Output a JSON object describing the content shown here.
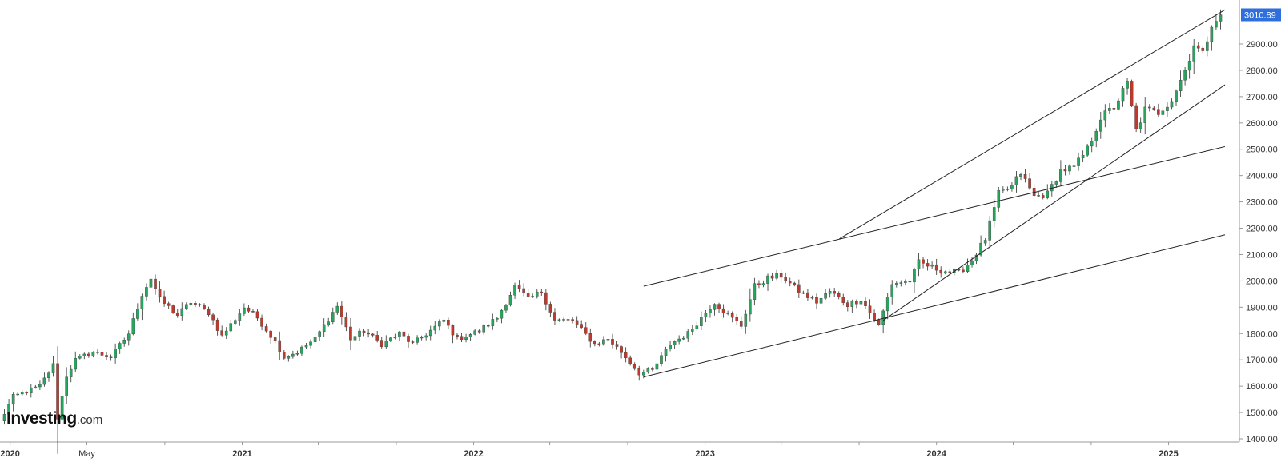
{
  "chart_data": {
    "type": "candlestick",
    "title": "",
    "xlabel": "",
    "ylabel": "",
    "ylim": [
      1400,
      3030
    ],
    "y_ticks": [
      1400.0,
      1500.0,
      1600.0,
      1700.0,
      1800.0,
      1900.0,
      2000.0,
      2100.0,
      2200.0,
      2300.0,
      2400.0,
      2500.0,
      2600.0,
      2700.0,
      2800.0,
      2900.0
    ],
    "x_range": [
      "2019-12-16",
      "2025-03-31"
    ],
    "x_labels": [
      {
        "date": "2020-01-01",
        "label": "2020",
        "bold": true
      },
      {
        "date": "2020-05-01",
        "label": "May",
        "bold": false
      },
      {
        "date": "2021-01-01",
        "label": "2021",
        "bold": true
      },
      {
        "date": "2022-01-01",
        "label": "2022",
        "bold": true
      },
      {
        "date": "2023-01-01",
        "label": "2023",
        "bold": true
      },
      {
        "date": "2024-01-01",
        "label": "2024",
        "bold": true
      },
      {
        "date": "2025-01-01",
        "label": "2025",
        "bold": true
      }
    ],
    "x_minor_ticks": [
      "2020-05-01",
      "2020-09-01",
      "2021-05-01",
      "2021-09-01",
      "2022-05-01",
      "2022-09-01",
      "2023-05-01",
      "2023-09-01",
      "2024-05-01",
      "2024-09-01"
    ],
    "last_price": "3010.89",
    "colors": {
      "up": "#26a65b",
      "down": "#c0392b",
      "wick": "#444444",
      "trendline": "#222222",
      "axis": "#999999",
      "tag": "#2f6fdb"
    },
    "series_anchors": [
      [
        "2019-12-16",
        1465
      ],
      [
        "2020-01-06",
        1560
      ],
      [
        "2020-02-17",
        1600
      ],
      [
        "2020-03-09",
        1680
      ],
      [
        "2020-03-16",
        1480
      ],
      [
        "2020-03-30",
        1640
      ],
      [
        "2020-04-13",
        1700
      ],
      [
        "2020-05-11",
        1730
      ],
      [
        "2020-06-08",
        1710
      ],
      [
        "2020-07-06",
        1800
      ],
      [
        "2020-07-27",
        1950
      ],
      [
        "2020-08-10",
        2010
      ],
      [
        "2020-08-24",
        1930
      ],
      [
        "2020-09-21",
        1870
      ],
      [
        "2020-10-12",
        1920
      ],
      [
        "2020-11-09",
        1880
      ],
      [
        "2020-11-30",
        1790
      ],
      [
        "2021-01-04",
        1900
      ],
      [
        "2021-01-25",
        1860
      ],
      [
        "2021-02-22",
        1770
      ],
      [
        "2021-03-08",
        1710
      ],
      [
        "2021-03-29",
        1730
      ],
      [
        "2021-04-26",
        1780
      ],
      [
        "2021-05-31",
        1905
      ],
      [
        "2021-06-21",
        1780
      ],
      [
        "2021-07-12",
        1810
      ],
      [
        "2021-08-09",
        1760
      ],
      [
        "2021-09-06",
        1800
      ],
      [
        "2021-09-27",
        1760
      ],
      [
        "2021-11-15",
        1850
      ],
      [
        "2021-12-06",
        1780
      ],
      [
        "2022-01-10",
        1810
      ],
      [
        "2022-02-07",
        1860
      ],
      [
        "2022-03-07",
        1980
      ],
      [
        "2022-03-28",
        1930
      ],
      [
        "2022-04-18",
        1960
      ],
      [
        "2022-05-09",
        1850
      ],
      [
        "2022-06-06",
        1850
      ],
      [
        "2022-07-11",
        1760
      ],
      [
        "2022-08-01",
        1780
      ],
      [
        "2022-08-22",
        1730
      ],
      [
        "2022-09-19",
        1650
      ],
      [
        "2022-10-10",
        1660
      ],
      [
        "2022-11-07",
        1760
      ],
      [
        "2022-12-05",
        1800
      ],
      [
        "2023-01-16",
        1920
      ],
      [
        "2023-02-06",
        1870
      ],
      [
        "2023-02-27",
        1830
      ],
      [
        "2023-03-20",
        1980
      ],
      [
        "2023-04-10",
        2010
      ],
      [
        "2023-05-01",
        2020
      ],
      [
        "2023-05-29",
        1960
      ],
      [
        "2023-06-26",
        1920
      ],
      [
        "2023-07-17",
        1960
      ],
      [
        "2023-08-14",
        1910
      ],
      [
        "2023-09-04",
        1930
      ],
      [
        "2023-10-02",
        1830
      ],
      [
        "2023-10-23",
        1990
      ],
      [
        "2023-11-20",
        2000
      ],
      [
        "2023-12-04",
        2070
      ],
      [
        "2024-01-08",
        2040
      ],
      [
        "2024-02-05",
        2030
      ],
      [
        "2024-02-26",
        2080
      ],
      [
        "2024-03-18",
        2160
      ],
      [
        "2024-04-08",
        2330
      ],
      [
        "2024-04-29",
        2360
      ],
      [
        "2024-05-13",
        2410
      ],
      [
        "2024-06-03",
        2320
      ],
      [
        "2024-06-24",
        2330
      ],
      [
        "2024-07-15",
        2420
      ],
      [
        "2024-08-05",
        2430
      ],
      [
        "2024-08-26",
        2500
      ],
      [
        "2024-09-16",
        2620
      ],
      [
        "2024-10-07",
        2660
      ],
      [
        "2024-10-28",
        2750
      ],
      [
        "2024-11-11",
        2570
      ],
      [
        "2024-11-25",
        2650
      ],
      [
        "2024-12-16",
        2640
      ],
      [
        "2025-01-06",
        2690
      ],
      [
        "2025-01-27",
        2800
      ],
      [
        "2025-02-10",
        2900
      ],
      [
        "2025-02-24",
        2860
      ],
      [
        "2025-03-10",
        2980
      ],
      [
        "2025-03-24",
        3010.89
      ]
    ],
    "annotations": [
      {
        "type": "trendline",
        "from": [
          "2023-08-01",
          2160
        ],
        "to": [
          "2025-03-31",
          3030
        ]
      },
      {
        "type": "trendline",
        "from": [
          "2023-10-09",
          1850
        ],
        "to": [
          "2025-03-31",
          2745
        ]
      },
      {
        "type": "trendline",
        "from": [
          "2022-09-26",
          1980
        ],
        "to": [
          "2025-03-31",
          2510
        ]
      },
      {
        "type": "trendline",
        "from": [
          "2022-09-26",
          1635
        ],
        "to": [
          "2025-03-31",
          2175
        ]
      }
    ]
  },
  "brand": {
    "name": "Investing",
    "suffix": ".com"
  }
}
